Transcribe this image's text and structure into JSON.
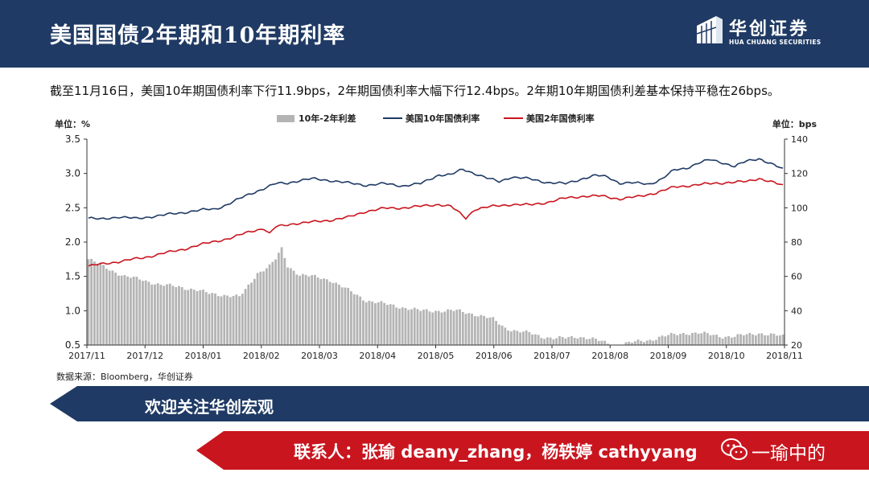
{
  "header": {
    "title": "美国国债2年期和10年期利率",
    "logo_cn": "华创证券",
    "logo_en": "HUA CHUANG SECURITIES"
  },
  "summary": "截至11月16日，美国10年期国债利率下行11.9bps，2年期国债利率大幅下行12.4bps。2年期10年期国债利差基本保持平稳在26bps。",
  "source": "数据来源：Bloomberg，华创证券",
  "banner1": {
    "text": "欢迎关注华创宏观"
  },
  "banner2": {
    "text": "联系人：张瑜 deany_zhang，杨轶婷 cathyyang",
    "overlay": "一瑜中的"
  },
  "colors": {
    "header_bg": "#1f3a64",
    "red": "#c9151e",
    "navy": "#1f3a64",
    "bar": "#b4b4b4"
  },
  "chart_data": {
    "type": "bar+line",
    "left_unit": "单位：%",
    "right_unit": "单位：bps",
    "left_ylim": [
      0.5,
      3.5
    ],
    "left_ticks": [
      "3.5",
      "3.0",
      "2.5",
      "2.0",
      "1.5",
      "1.0",
      "0.5"
    ],
    "right_ylim": [
      20,
      140
    ],
    "right_ticks": [
      "140",
      "120",
      "100",
      "80",
      "60",
      "40",
      "20"
    ],
    "x_ticks": [
      "2017/11",
      "2017/12",
      "2018/01",
      "2018/02",
      "2018/03",
      "2018/04",
      "2018/05",
      "2018/06",
      "2018/07",
      "2018/08",
      "2018/09",
      "2018/10",
      "2018/11"
    ],
    "legend": [
      "10年-2年利差",
      "美国10年国债利率",
      "美国2年国债利率"
    ],
    "grid": false,
    "series_10y_anchors": [
      [
        0,
        2.35
      ],
      [
        4,
        2.33
      ],
      [
        10,
        2.37
      ],
      [
        16,
        2.34
      ],
      [
        22,
        2.38
      ],
      [
        26,
        2.4
      ],
      [
        30,
        2.42
      ],
      [
        34,
        2.45
      ],
      [
        38,
        2.47
      ],
      [
        42,
        2.48
      ],
      [
        46,
        2.55
      ],
      [
        50,
        2.63
      ],
      [
        54,
        2.71
      ],
      [
        58,
        2.78
      ],
      [
        62,
        2.85
      ],
      [
        66,
        2.86
      ],
      [
        70,
        2.9
      ],
      [
        74,
        2.92
      ],
      [
        80,
        2.9
      ],
      [
        86,
        2.86
      ],
      [
        92,
        2.83
      ],
      [
        98,
        2.85
      ],
      [
        104,
        2.82
      ],
      [
        110,
        2.85
      ],
      [
        116,
        2.98
      ],
      [
        120,
        2.98
      ],
      [
        124,
        3.06
      ],
      [
        128,
        3.0
      ],
      [
        132,
        2.93
      ],
      [
        136,
        2.88
      ],
      [
        140,
        2.95
      ],
      [
        146,
        2.92
      ],
      [
        152,
        2.87
      ],
      [
        158,
        2.85
      ],
      [
        164,
        2.93
      ],
      [
        168,
        2.97
      ],
      [
        172,
        2.95
      ],
      [
        176,
        2.86
      ],
      [
        180,
        2.86
      ],
      [
        186,
        2.85
      ],
      [
        190,
        2.92
      ],
      [
        194,
        3.05
      ],
      [
        198,
        3.08
      ],
      [
        202,
        3.15
      ],
      [
        206,
        3.2
      ],
      [
        210,
        3.16
      ],
      [
        214,
        3.1
      ],
      [
        218,
        3.18
      ],
      [
        222,
        3.22
      ],
      [
        226,
        3.14
      ],
      [
        230,
        3.06
      ]
    ],
    "series_2y_anchors": [
      [
        0,
        1.65
      ],
      [
        6,
        1.69
      ],
      [
        12,
        1.73
      ],
      [
        18,
        1.77
      ],
      [
        24,
        1.83
      ],
      [
        30,
        1.88
      ],
      [
        36,
        1.95
      ],
      [
        42,
        2.01
      ],
      [
        48,
        2.07
      ],
      [
        54,
        2.16
      ],
      [
        58,
        2.2
      ],
      [
        60,
        2.12
      ],
      [
        62,
        2.22
      ],
      [
        68,
        2.27
      ],
      [
        74,
        2.29
      ],
      [
        80,
        2.32
      ],
      [
        86,
        2.36
      ],
      [
        92,
        2.45
      ],
      [
        98,
        2.49
      ],
      [
        104,
        2.5
      ],
      [
        110,
        2.52
      ],
      [
        116,
        2.55
      ],
      [
        120,
        2.52
      ],
      [
        125,
        2.35
      ],
      [
        128,
        2.48
      ],
      [
        134,
        2.52
      ],
      [
        140,
        2.55
      ],
      [
        146,
        2.54
      ],
      [
        152,
        2.58
      ],
      [
        158,
        2.64
      ],
      [
        164,
        2.67
      ],
      [
        170,
        2.67
      ],
      [
        176,
        2.63
      ],
      [
        182,
        2.66
      ],
      [
        188,
        2.72
      ],
      [
        194,
        2.8
      ],
      [
        200,
        2.83
      ],
      [
        206,
        2.85
      ],
      [
        212,
        2.87
      ],
      [
        218,
        2.88
      ],
      [
        222,
        2.93
      ],
      [
        226,
        2.88
      ],
      [
        230,
        2.82
      ]
    ],
    "series_spread_anchors": [
      [
        0,
        70
      ],
      [
        6,
        65
      ],
      [
        12,
        60
      ],
      [
        18,
        58
      ],
      [
        24,
        55
      ],
      [
        30,
        54
      ],
      [
        36,
        52
      ],
      [
        40,
        50
      ],
      [
        46,
        49
      ],
      [
        50,
        48
      ],
      [
        52,
        52
      ],
      [
        56,
        62
      ],
      [
        60,
        66
      ],
      [
        62,
        70
      ],
      [
        64,
        76
      ],
      [
        66,
        66
      ],
      [
        70,
        61
      ],
      [
        74,
        60
      ],
      [
        80,
        58
      ],
      [
        86,
        52
      ],
      [
        92,
        46
      ],
      [
        98,
        44
      ],
      [
        104,
        42
      ],
      [
        110,
        40
      ],
      [
        116,
        40
      ],
      [
        122,
        40
      ],
      [
        128,
        38
      ],
      [
        134,
        35
      ],
      [
        138,
        30
      ],
      [
        142,
        28
      ],
      [
        146,
        27
      ],
      [
        150,
        25
      ],
      [
        154,
        24
      ],
      [
        158,
        24
      ],
      [
        162,
        25
      ],
      [
        166,
        24
      ],
      [
        170,
        22
      ],
      [
        174,
        20
      ],
      [
        178,
        21
      ],
      [
        182,
        22
      ],
      [
        186,
        23
      ],
      [
        190,
        25
      ],
      [
        194,
        26
      ],
      [
        198,
        27
      ],
      [
        202,
        27
      ],
      [
        206,
        26
      ],
      [
        210,
        25
      ],
      [
        214,
        25
      ],
      [
        218,
        26
      ],
      [
        222,
        27
      ],
      [
        226,
        26
      ],
      [
        230,
        25
      ]
    ]
  }
}
